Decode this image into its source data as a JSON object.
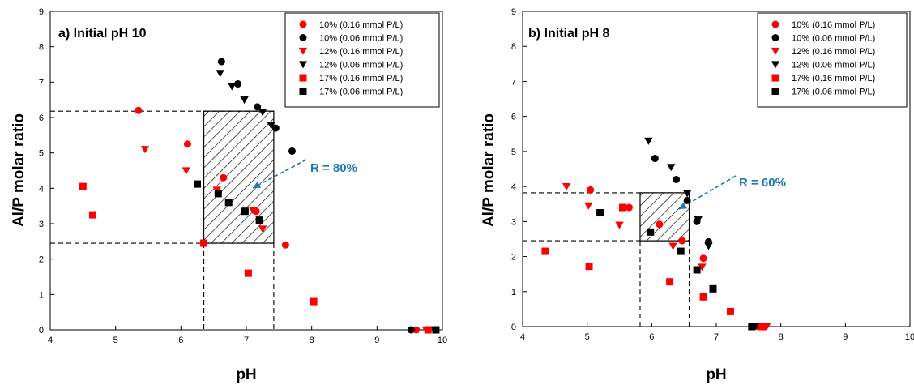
{
  "colors": {
    "red": "#ff0000",
    "black": "#000000",
    "annotation": "#1f77b4"
  },
  "chart_data": [
    {
      "type": "scatter",
      "title": "a) Initial pH 10",
      "xlabel": "pH",
      "ylabel": "Al/P molar ratio",
      "xlim": [
        4,
        10
      ],
      "ylim": [
        0,
        9
      ],
      "xticks": [
        "4",
        "5",
        "6",
        "7",
        "8",
        "9",
        "10"
      ],
      "yticks": [
        "0",
        "1",
        "2",
        "3",
        "4",
        "5",
        "6",
        "7",
        "8",
        "9"
      ],
      "legend_position": "top-right",
      "annotation": {
        "text": "R  =  80%"
      },
      "region": {
        "x": [
          6.35,
          7.42
        ],
        "y": [
          2.45,
          6.18
        ]
      },
      "series": [
        {
          "name": "10% (0.16 mmol P/L)",
          "marker": "circle",
          "color": "red",
          "points": [
            [
              5.35,
              6.2
            ],
            [
              6.1,
              5.25
            ],
            [
              6.65,
              4.3
            ],
            [
              7.15,
              3.35
            ],
            [
              7.6,
              2.4
            ],
            [
              9.6,
              0.0
            ]
          ]
        },
        {
          "name": "10% (0.06 mmol P/L)",
          "marker": "circle",
          "color": "black",
          "points": [
            [
              6.62,
              7.58
            ],
            [
              6.87,
              6.95
            ],
            [
              7.17,
              6.3
            ],
            [
              7.45,
              5.7
            ],
            [
              7.7,
              5.05
            ],
            [
              9.52,
              0.0
            ]
          ]
        },
        {
          "name": "12% (0.16 mmol P/L)",
          "marker": "triangle-down",
          "color": "red",
          "points": [
            [
              5.45,
              5.1
            ],
            [
              6.08,
              4.5
            ],
            [
              6.55,
              3.95
            ],
            [
              7.1,
              3.38
            ],
            [
              7.25,
              2.85
            ],
            [
              9.75,
              0.0
            ]
          ]
        },
        {
          "name": "12% (0.06 mmol P/L)",
          "marker": "triangle-down",
          "color": "black",
          "points": [
            [
              6.6,
              7.25
            ],
            [
              6.78,
              6.88
            ],
            [
              6.97,
              6.5
            ],
            [
              7.25,
              6.15
            ],
            [
              7.38,
              5.78
            ],
            [
              9.88,
              0.0
            ]
          ]
        },
        {
          "name": "17% (0.16 mmol P/L)",
          "marker": "square",
          "color": "red",
          "points": [
            [
              4.5,
              4.05
            ],
            [
              4.65,
              3.25
            ],
            [
              6.35,
              2.45
            ],
            [
              7.03,
              1.6
            ],
            [
              8.03,
              0.8
            ],
            [
              9.78,
              0.0
            ]
          ]
        },
        {
          "name": "17% (0.06 mmol P/L)",
          "marker": "square",
          "color": "black",
          "points": [
            [
              6.25,
              4.12
            ],
            [
              6.57,
              3.85
            ],
            [
              6.73,
              3.6
            ],
            [
              6.98,
              3.35
            ],
            [
              7.2,
              3.1
            ],
            [
              9.9,
              0.0
            ]
          ]
        }
      ]
    },
    {
      "type": "scatter",
      "title": "b) Initial pH 8",
      "xlabel": "pH",
      "ylabel": "Al/P molar ratio",
      "xlim": [
        4,
        10
      ],
      "ylim": [
        0,
        9
      ],
      "xticks": [
        "4",
        "5",
        "6",
        "7",
        "8",
        "9",
        "10"
      ],
      "yticks": [
        "0",
        "1",
        "2",
        "3",
        "4",
        "5",
        "6",
        "7",
        "8",
        "9"
      ],
      "legend_position": "top-right",
      "annotation": {
        "text": "R  =  60%"
      },
      "region": {
        "x": [
          5.82,
          6.58
        ],
        "y": [
          2.45,
          3.82
        ]
      },
      "series": [
        {
          "name": "10% (0.16 mmol P/L)",
          "marker": "circle",
          "color": "red",
          "points": [
            [
              5.05,
              3.9
            ],
            [
              5.65,
              3.4
            ],
            [
              6.12,
              2.92
            ],
            [
              6.47,
              2.45
            ],
            [
              6.8,
              1.95
            ],
            [
              7.65,
              0.0
            ]
          ]
        },
        {
          "name": "10% (0.06 mmol P/L)",
          "marker": "circle",
          "color": "black",
          "points": [
            [
              6.05,
              4.8
            ],
            [
              6.38,
              4.2
            ],
            [
              6.55,
              3.6
            ],
            [
              6.7,
              3.0
            ],
            [
              6.88,
              2.42
            ],
            [
              7.58,
              0.0
            ]
          ]
        },
        {
          "name": "12% (0.16 mmol P/L)",
          "marker": "triangle-down",
          "color": "red",
          "points": [
            [
              4.68,
              4.0
            ],
            [
              5.02,
              3.45
            ],
            [
              5.5,
              2.9
            ],
            [
              6.33,
              2.3
            ],
            [
              6.78,
              1.7
            ],
            [
              7.78,
              0.0
            ]
          ]
        },
        {
          "name": "12% (0.06 mmol P/L)",
          "marker": "triangle-down",
          "color": "black",
          "points": [
            [
              5.95,
              5.3
            ],
            [
              6.3,
              4.55
            ],
            [
              6.55,
              3.8
            ],
            [
              6.72,
              3.05
            ],
            [
              6.88,
              2.3
            ],
            [
              7.6,
              0.0
            ]
          ]
        },
        {
          "name": "17% (0.16 mmol P/L)",
          "marker": "square",
          "color": "red",
          "points": [
            [
              4.35,
              2.15
            ],
            [
              5.03,
              1.72
            ],
            [
              5.55,
              3.4
            ],
            [
              6.28,
              1.28
            ],
            [
              6.8,
              0.85
            ],
            [
              7.22,
              0.43
            ],
            [
              7.72,
              0.0
            ]
          ]
        },
        {
          "name": "17% (0.06 mmol P/L)",
          "marker": "square",
          "color": "black",
          "points": [
            [
              5.2,
              3.25
            ],
            [
              5.98,
              2.7
            ],
            [
              6.45,
              2.15
            ],
            [
              6.7,
              1.62
            ],
            [
              6.95,
              1.08
            ],
            [
              7.55,
              0.0
            ]
          ]
        }
      ]
    }
  ]
}
